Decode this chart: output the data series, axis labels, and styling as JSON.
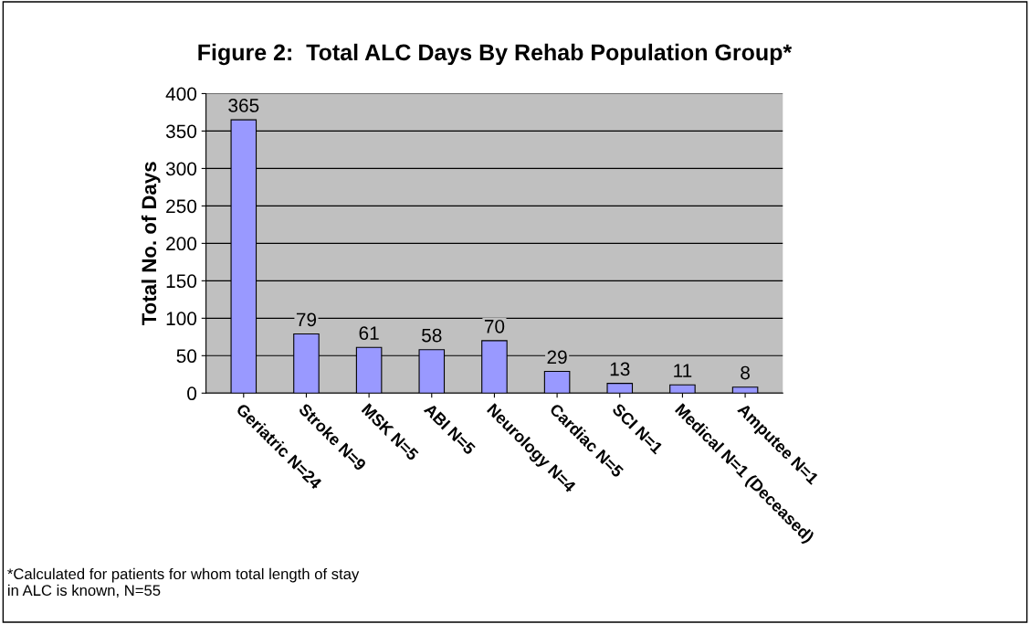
{
  "chart_data": {
    "type": "bar",
    "title": "Figure 2:  Total ALC Days By Rehab Population Group*",
    "ylabel": "Total No. of Days",
    "categories": [
      "Geriatric N=24",
      "Stroke N=9",
      "MSK N=5",
      "ABI N=5",
      "Neurology N=4",
      "Cardiac N=5",
      "SCI N=1",
      "Medical N=1 (Deceased)",
      "Amputee N=1"
    ],
    "values": [
      365,
      79,
      61,
      58,
      70,
      29,
      13,
      11,
      8
    ],
    "color": "#9999ff",
    "ylim": [
      0,
      400
    ],
    "yticks": [
      0,
      50,
      100,
      150,
      200,
      250,
      300,
      350,
      400
    ],
    "grid": "y",
    "data_labels": true,
    "annotations": [
      "*Calculated for patients for whom total length of stay in ALC is known, N=55"
    ]
  }
}
